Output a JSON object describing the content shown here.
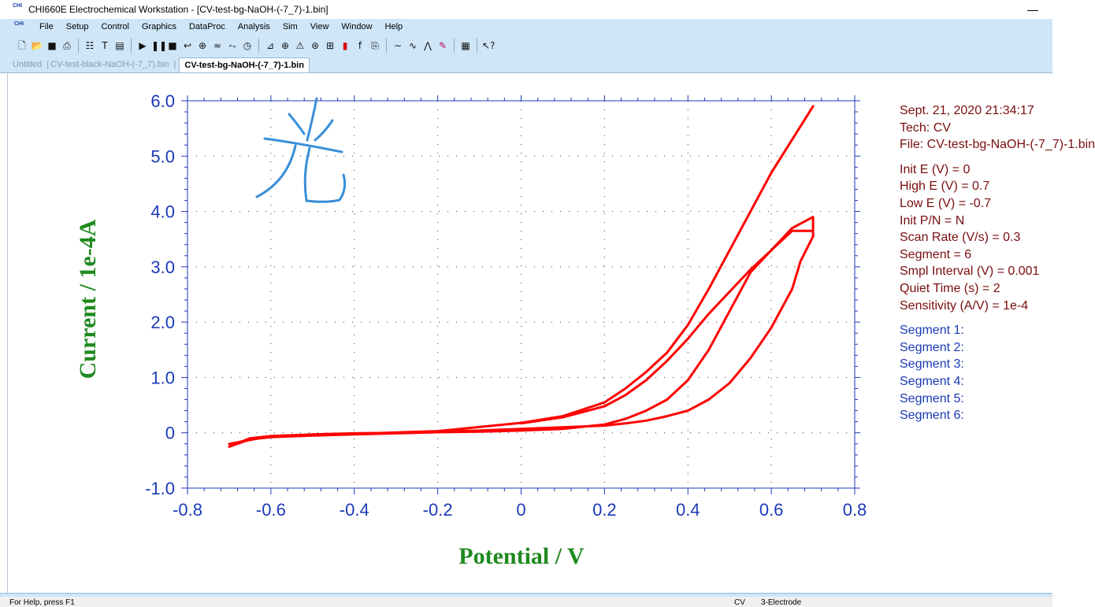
{
  "window": {
    "title": "CHI660E Electrochemical Workstation - [CV-test-bg-NaOH-(-7_7)-1.bin]",
    "icon_text": "CHI"
  },
  "menu": [
    "File",
    "Setup",
    "Control",
    "Graphics",
    "DataProc",
    "Analysis",
    "Sim",
    "View",
    "Window",
    "Help"
  ],
  "toolbar": {
    "icons": [
      "new-file-icon",
      "open-folder-icon",
      "save-icon",
      "print-icon",
      "system-icon",
      "technique-icon",
      "parameters-icon",
      "run-icon",
      "pause-icon",
      "stop-icon",
      "reverse-scan-icon",
      "ir-compensation-icon",
      "filter-icon",
      "cell-icon",
      "clock-icon",
      "graph-icon",
      "zoom-icon",
      "overlay-icon",
      "add-data-icon",
      "format-icon",
      "color-icon",
      "font-icon",
      "copy-icon",
      "smooth-icon",
      "derivative-icon",
      "peak-icon",
      "edit-icon",
      "report-icon",
      "help-pointer-icon"
    ]
  },
  "tabs": [
    {
      "label": "Untitled",
      "active": false
    },
    {
      "label": "CV-test-black-NaOH-(-7_7).bin",
      "active": false
    },
    {
      "label": "CV-test-bg-NaOH-(-7_7)-1.bin",
      "active": true
    }
  ],
  "chart_data": {
    "type": "line",
    "xlabel": "Potential / V",
    "ylabel": "Current / 1e-4A",
    "xlim": [
      -0.8,
      0.8
    ],
    "ylim": [
      -1.0,
      6.0
    ],
    "xticks": [
      "-0.8",
      "-0.6",
      "-0.4",
      "-0.2",
      "0",
      "0.2",
      "0.4",
      "0.6",
      "0.8"
    ],
    "yticks": [
      "6.0",
      "5.0",
      "4.0",
      "3.0",
      "2.0",
      "1.0",
      "0",
      "-1.0"
    ],
    "grid": "dotted",
    "series": [
      {
        "color": "#ff0000",
        "x": [
          -0.7,
          -0.65,
          -0.6,
          -0.5,
          -0.4,
          -0.3,
          -0.2,
          -0.1,
          0.0,
          0.1,
          0.2,
          0.25,
          0.3,
          0.35,
          0.4,
          0.45,
          0.5,
          0.55,
          0.6,
          0.65,
          0.7,
          0.7,
          0.67,
          0.65,
          0.6,
          0.55,
          0.5,
          0.45,
          0.4,
          0.35,
          0.3,
          0.25,
          0.2,
          0.1,
          0.0,
          -0.1,
          -0.2,
          -0.3,
          -0.4,
          -0.5,
          -0.6,
          -0.65,
          -0.7
        ],
        "y": [
          -0.25,
          -0.12,
          -0.08,
          -0.05,
          -0.03,
          -0.01,
          0.01,
          0.02,
          0.04,
          0.07,
          0.15,
          0.25,
          0.4,
          0.6,
          0.95,
          1.5,
          2.2,
          2.9,
          3.3,
          3.7,
          3.9,
          3.55,
          3.1,
          2.6,
          1.9,
          1.35,
          0.9,
          0.6,
          0.4,
          0.3,
          0.22,
          0.17,
          0.13,
          0.1,
          0.07,
          0.04,
          0.02,
          0.0,
          -0.01,
          -0.03,
          -0.06,
          -0.1,
          -0.25
        ]
      },
      {
        "color": "#ff0000",
        "x": [
          -0.7,
          -0.6,
          -0.4,
          -0.2,
          0.0,
          0.1,
          0.2,
          0.25,
          0.3,
          0.35,
          0.4,
          0.45,
          0.5,
          0.55,
          0.6,
          0.65,
          0.7
        ],
        "y": [
          -0.2,
          -0.06,
          -0.02,
          0.03,
          0.18,
          0.3,
          0.55,
          0.8,
          1.1,
          1.45,
          1.95,
          2.6,
          3.3,
          4.0,
          4.7,
          5.3,
          5.9
        ]
      },
      {
        "color": "#ff0000",
        "x": [
          0.0,
          0.1,
          0.2,
          0.25,
          0.3,
          0.35,
          0.4,
          0.45,
          0.5,
          0.55,
          0.6,
          0.65,
          0.7
        ],
        "y": [
          0.17,
          0.28,
          0.48,
          0.68,
          0.95,
          1.3,
          1.7,
          2.15,
          2.55,
          2.95,
          3.3,
          3.65,
          3.65
        ]
      }
    ]
  },
  "annotation": {
    "handwritten_char": "光",
    "color": "#3a8fd8"
  },
  "info": {
    "params": [
      "Sept. 21, 2020   21:34:17",
      "Tech: CV",
      "File: CV-test-bg-NaOH-(-7_7)-1.bin"
    ],
    "settings": [
      "Init E (V) = 0",
      "High E (V) = 0.7",
      "Low E (V) = -0.7",
      "Init P/N = N",
      "Scan Rate (V/s) = 0.3",
      "Segment = 6",
      "Smpl Interval (V) = 0.001",
      "Quiet Time (s) = 2",
      "Sensitivity (A/V) = 1e-4"
    ],
    "segments": [
      "Segment 1:",
      "Segment 2:",
      "Segment 3:",
      "Segment 4:",
      "Segment 5:",
      "Segment 6:"
    ]
  },
  "status": {
    "help": "For Help, press F1",
    "technique": "CV",
    "electrode": "3-Electrode"
  }
}
